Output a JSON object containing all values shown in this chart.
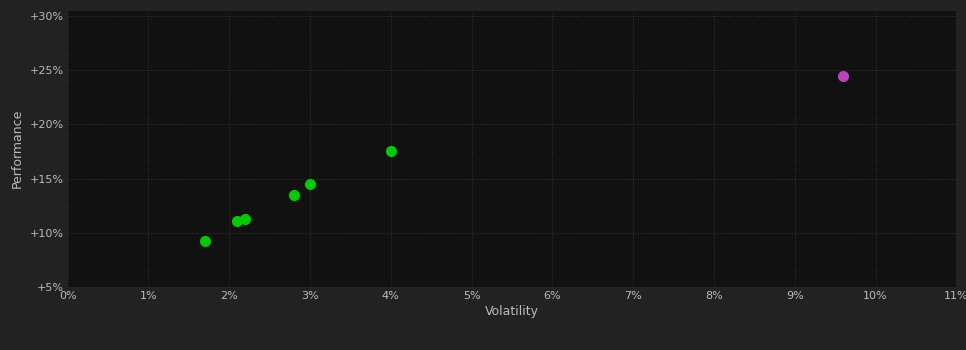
{
  "background_color": "#222222",
  "plot_bg_color": "#111111",
  "grid_color": "#333333",
  "xlabel": "Volatility",
  "ylabel": "Performance",
  "xlim": [
    0.0,
    0.11
  ],
  "ylim": [
    0.05,
    0.305
  ],
  "xticks": [
    0.0,
    0.01,
    0.02,
    0.03,
    0.04,
    0.05,
    0.06,
    0.07,
    0.08,
    0.09,
    0.1,
    0.11
  ],
  "yticks": [
    0.05,
    0.1,
    0.15,
    0.2,
    0.25,
    0.3
  ],
  "green_points": [
    [
      0.017,
      0.092
    ],
    [
      0.021,
      0.111
    ],
    [
      0.022,
      0.113
    ],
    [
      0.028,
      0.135
    ],
    [
      0.03,
      0.145
    ],
    [
      0.04,
      0.175
    ]
  ],
  "magenta_points": [
    [
      0.096,
      0.245
    ]
  ],
  "green_color": "#00cc00",
  "magenta_color": "#bb44bb",
  "tick_color": "#bbbbbb",
  "label_color": "#bbbbbb",
  "marker_size": 8,
  "font_size_ticks": 8,
  "font_size_labels": 9
}
